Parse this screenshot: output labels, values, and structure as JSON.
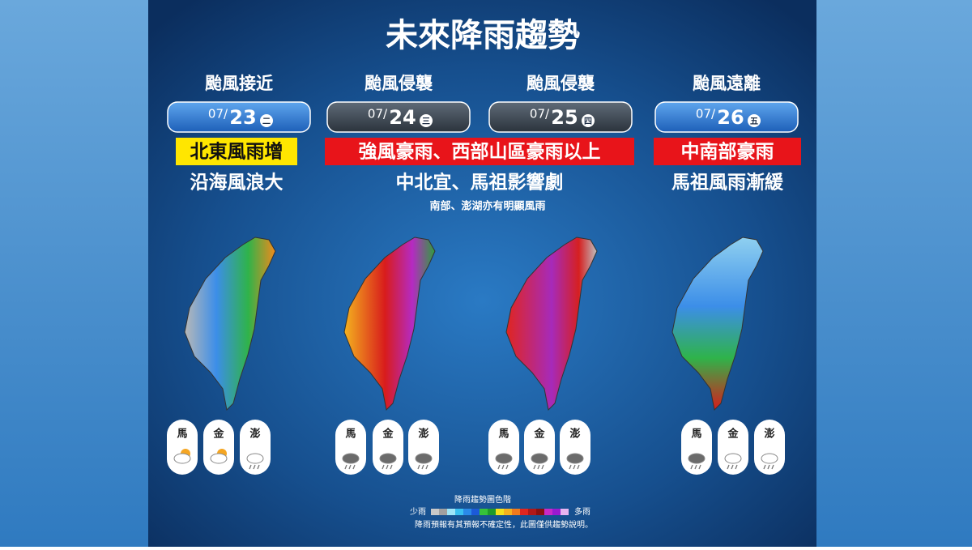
{
  "title": "未來降雨趨勢",
  "columns": [
    {
      "phase": "颱風接近",
      "month": "07/",
      "day": "23",
      "weekday": "二",
      "stations": [
        "馬",
        "金",
        "澎"
      ]
    },
    {
      "phase": "颱風侵襲",
      "month": "07/",
      "day": "24",
      "weekday": "三",
      "stations": [
        "馬",
        "金",
        "澎"
      ]
    },
    {
      "phase": "颱風侵襲",
      "month": "07/",
      "day": "25",
      "weekday": "四",
      "stations": [
        "馬",
        "金",
        "澎"
      ]
    },
    {
      "phase": "颱風遠離",
      "month": "07/",
      "day": "26",
      "weekday": "五",
      "stations": [
        "馬",
        "金",
        "澎"
      ]
    }
  ],
  "notes": [
    {
      "headline": "北東風雨增",
      "detail": "沿海風浪大"
    },
    {
      "headline": "強風豪雨、西部山區豪雨以上",
      "detail": "中北宜、馬祖影響劇",
      "extra": "南部、澎湖亦有明顯風雨"
    },
    {
      "headline": "中南部豪雨",
      "detail": "馬祖風雨漸緩"
    }
  ],
  "legend": {
    "title": "降雨趨勢圖色階",
    "low": "少雨",
    "high": "多雨",
    "disclaimer": "降雨預報有其預報不確定性，此圖僅供趨勢說明。"
  }
}
